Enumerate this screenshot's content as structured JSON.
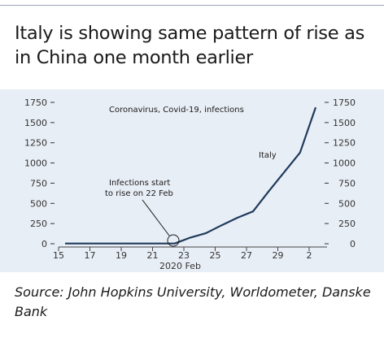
{
  "header": {
    "title": "Italy is showing same pattern of rise as in China one month earlier"
  },
  "footer": {
    "source": "Source: John Hopkins University, Worldometer, Danske Bank"
  },
  "colors": {
    "line": "#1f3a5c",
    "panel": "#e8eef5"
  },
  "chart_data": {
    "type": "line",
    "title": "Coronavirus, Covid-19, infections",
    "xlabel": "2020 Feb",
    "x_ticks": [
      "15",
      "17",
      "19",
      "21",
      "23",
      "25",
      "27",
      "29",
      "2"
    ],
    "y_ticks": [
      "0",
      "250",
      "500",
      "750",
      "1000",
      "1250",
      "1500",
      "1750"
    ],
    "ylim": [
      0,
      1750
    ],
    "series": [
      {
        "name": "Italy",
        "x": [
          "2020-02-15",
          "2020-02-16",
          "2020-02-17",
          "2020-02-18",
          "2020-02-19",
          "2020-02-20",
          "2020-02-21",
          "2020-02-22",
          "2020-02-23",
          "2020-02-24",
          "2020-02-25",
          "2020-02-26",
          "2020-02-27",
          "2020-02-28",
          "2020-02-29",
          "2020-03-01",
          "2020-03-02"
        ],
        "values": [
          3,
          3,
          3,
          3,
          3,
          3,
          3,
          3,
          76,
          132,
          229,
          322,
          400,
          650,
          888,
          1128,
          1689
        ]
      }
    ],
    "annotation": {
      "text_line1": "Infections start",
      "text_line2": "to rise on 22 Feb"
    },
    "grid": false
  }
}
